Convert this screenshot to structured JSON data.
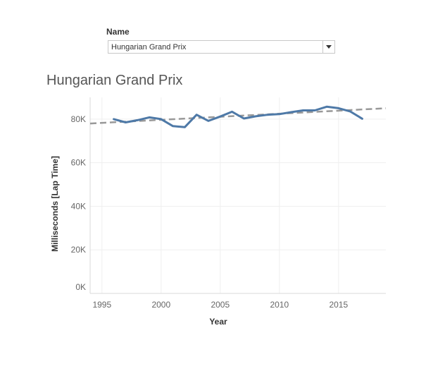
{
  "filter": {
    "label": "Name",
    "selected": "Hungarian Grand Prix"
  },
  "chart_data": {
    "type": "line",
    "title": "Hungarian Grand Prix",
    "xlabel": "Year",
    "ylabel": "Milliseconds [Lap Time]",
    "xlim": [
      1994,
      2019
    ],
    "ylim": [
      0,
      90000
    ],
    "x_ticks": [
      1995,
      2000,
      2005,
      2010,
      2015
    ],
    "y_ticks": [
      0,
      20000,
      40000,
      60000,
      80000
    ],
    "y_tick_labels": [
      "0K",
      "20K",
      "40K",
      "60K",
      "80K"
    ],
    "grid": true,
    "series": [
      {
        "color": "#4e79a7",
        "x": [
          1996,
          1997,
          1998,
          1999,
          2000,
          2001,
          2002,
          2003,
          2004,
          2005,
          2006,
          2007,
          2008,
          2009,
          2010,
          2011,
          2012,
          2013,
          2014,
          2015,
          2016,
          2017
        ],
        "y": [
          80000,
          78500,
          79500,
          80800,
          80000,
          76800,
          76300,
          82000,
          79200,
          81200,
          83400,
          80300,
          81300,
          82000,
          82300,
          83200,
          84000,
          84000,
          85700,
          85000,
          83500,
          80200
        ]
      }
    ],
    "trend_line": {
      "color": "#999999",
      "x": [
        1994,
        2019
      ],
      "y": [
        78000,
        85000
      ]
    }
  }
}
